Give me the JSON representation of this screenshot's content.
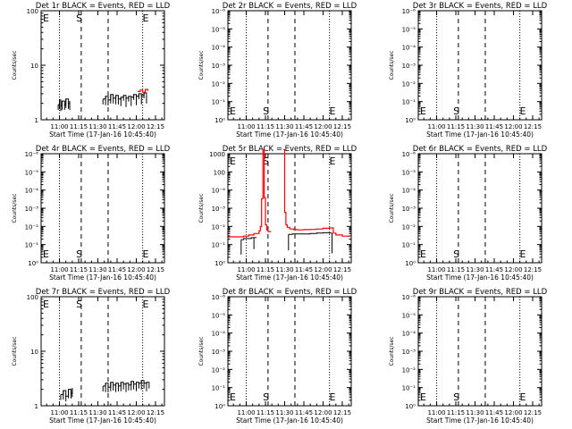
{
  "chart_data": [
    {
      "type": "line",
      "title": "Det 1r BLACK = Events, RED = LLD",
      "xlabel": "Start Time (17-Jan-16 10:45:40)",
      "ylabel": "Counts/sec",
      "y_scale": "log",
      "y_ticks": [
        "1",
        "10",
        "100"
      ],
      "x_ticks": [
        "11:00",
        "11:15",
        "11:30",
        "11:45",
        "12:00",
        "12:15"
      ],
      "markers": [
        {
          "label": "E",
          "time": "10:48"
        },
        {
          "label": "S",
          "time": "11:13"
        },
        {
          "label": "E",
          "time": "12:07"
        }
      ],
      "series": [
        {
          "color": "#000000",
          "x": [
            "10:59",
            "11:00",
            "11:01",
            "11:02",
            "11:04",
            "11:05",
            "11:07",
            "11:08"
          ],
          "y": [
            1.9,
            2.3,
            1.8,
            2.2,
            1.9,
            2.4,
            2.0,
            2.2
          ]
        },
        {
          "color": "#000000",
          "x": [
            "11:34",
            "11:36",
            "11:38",
            "11:40",
            "11:42",
            "11:44",
            "11:46",
            "11:48",
            "11:50",
            "11:52",
            "11:54",
            "11:56",
            "11:58",
            "12:00",
            "12:02",
            "12:04",
            "12:06",
            "12:08"
          ],
          "y": [
            2.4,
            2.7,
            2.3,
            2.9,
            2.5,
            2.8,
            2.4,
            2.6,
            2.8,
            2.5,
            2.7,
            2.6,
            2.9,
            2.7,
            3.0,
            2.8,
            3.1,
            2.9
          ]
        },
        {
          "color": "#ff0000",
          "x": [
            "12:01",
            "12:03",
            "12:05",
            "12:07",
            "12:09"
          ],
          "y": [
            3.3,
            3.5,
            3.2,
            3.6,
            3.4
          ]
        }
      ]
    },
    {
      "type": "line",
      "title": "Det 2r BLACK = Events, RED = LLD",
      "xlabel": "Start Time (17-Jan-16 10:45:40)",
      "ylabel": "Counts/sec",
      "y_scale": "log",
      "y_ticks": [
        "10⁰",
        "10⁻¹",
        "10⁻²",
        "10⁻³",
        "10⁻⁴",
        "10⁻⁵",
        "10⁻⁶"
      ],
      "x_ticks": [
        "11:00",
        "11:15",
        "11:30",
        "11:45",
        "12:00",
        "12:15"
      ],
      "markers": [
        {
          "label": "E",
          "time": "10:48"
        },
        {
          "label": "S",
          "time": "11:13"
        },
        {
          "label": "E",
          "time": "12:07"
        }
      ],
      "series": []
    },
    {
      "type": "line",
      "title": "Det 3r BLACK = Events, RED = LLD",
      "xlabel": "Start Time (17-Jan-16 10:45:40)",
      "ylabel": "Counts/sec",
      "y_scale": "log",
      "y_ticks": [
        "10⁰",
        "10⁻¹",
        "10⁻²",
        "10⁻³",
        "10⁻⁴",
        "10⁻⁵",
        "10⁻⁶"
      ],
      "x_ticks": [
        "11:00",
        "11:15",
        "11:30",
        "11:45",
        "12:00",
        "12:15"
      ],
      "markers": [
        {
          "label": "E",
          "time": "10:48"
        },
        {
          "label": "S",
          "time": "11:13"
        },
        {
          "label": "E",
          "time": "12:07"
        }
      ],
      "series": []
    },
    {
      "type": "line",
      "title": "Det 4r BLACK = Events, RED = LLD",
      "xlabel": "Start Time (17-Jan-16 10:45:40)",
      "ylabel": "Counts/sec",
      "y_scale": "log",
      "y_ticks": [
        "10⁰",
        "10⁻¹",
        "10⁻²",
        "10⁻³",
        "10⁻⁴",
        "10⁻⁵",
        "10⁻⁶"
      ],
      "x_ticks": [
        "11:00",
        "11:15",
        "11:30",
        "11:45",
        "12:00",
        "12:15"
      ],
      "markers": [
        {
          "label": "E",
          "time": "10:48"
        },
        {
          "label": "S",
          "time": "11:13"
        },
        {
          "label": "E",
          "time": "12:07"
        }
      ],
      "series": []
    },
    {
      "type": "line",
      "title": "Det 5r BLACK = Events, RED = LLD",
      "xlabel": "Start Time (17-Jan-16 10:45:40)",
      "ylabel": "Counts/sec",
      "y_scale": "log",
      "y_ticks": [
        "10⁰",
        "10⁻¹",
        "10⁻²",
        "10⁻³",
        "10⁻⁴",
        "100",
        "1000"
      ],
      "x_ticks": [
        "11:00",
        "11:15",
        "11:30",
        "11:45",
        "12:00",
        "12:15"
      ],
      "markers": [
        {
          "label": "E",
          "time": "10:48"
        },
        {
          "label": "S",
          "time": "11:13"
        },
        {
          "label": "E",
          "time": "12:07"
        }
      ],
      "series": [
        {
          "color": "#ff0000",
          "x": [
            "10:46",
            "10:50",
            "10:54",
            "10:58",
            "11:02",
            "11:06",
            "11:10",
            "11:11",
            "11:12",
            "11:13",
            "11:14",
            "11:15",
            "11:16",
            "11:17",
            "11:18",
            "11:19"
          ],
          "y": [
            0.0008,
            0.0008,
            0.0008,
            0.0009,
            0.0011,
            0.0014,
            0.0022,
            0.0045,
            0.5,
            2000,
            0.6,
            0.006,
            0.0025,
            0.002,
            0.0019,
            0.0018
          ]
        },
        {
          "color": "#ff0000",
          "x": [
            "11:29",
            "11:30",
            "11:31",
            "11:32",
            "11:34",
            "11:37",
            "11:40",
            "11:45",
            "11:50",
            "11:55",
            "12:00",
            "12:05",
            "12:08",
            "12:10",
            "12:15",
            "12:20"
          ],
          "y": [
            2000,
            0.05,
            0.006,
            0.004,
            0.003,
            0.0027,
            0.0026,
            0.0027,
            0.0028,
            0.003,
            0.0034,
            0.0036,
            0.0015,
            0.0011,
            0.0009,
            0.0008
          ]
        },
        {
          "color": "#000000",
          "x": [
            "10:56",
            "10:58",
            "11:00",
            "11:02",
            "11:04",
            "11:06",
            "11:08"
          ],
          "y": [
            0.0005,
            0.0006,
            0.0006,
            0.0006,
            0.0007,
            0.0007,
            0.0007
          ]
        },
        {
          "color": "#000000",
          "x": [
            "11:33",
            "11:36",
            "11:40",
            "11:45",
            "11:50",
            "11:55",
            "12:00",
            "12:03",
            "12:05",
            "12:07"
          ],
          "y": [
            0.0012,
            0.0013,
            0.0013,
            0.0013,
            0.0014,
            0.0015,
            0.0016,
            0.0016,
            0.0015,
            0.0015
          ]
        }
      ],
      "drops": [
        {
          "x": "10:56",
          "y_from": 0.0005,
          "y_to": 4e-05
        },
        {
          "x": "11:06",
          "y_from": 0.0007,
          "y_to": 0.0001
        },
        {
          "x": "11:33",
          "y_from": 0.0012,
          "y_to": 8e-05
        },
        {
          "x": "12:07",
          "y_from": 0.0015,
          "y_to": 5e-05
        }
      ]
    },
    {
      "type": "line",
      "title": "Det 6r BLACK = Events, RED = LLD",
      "xlabel": "Start Time (17-Jan-16 10:45:40)",
      "ylabel": "Counts/sec",
      "y_scale": "log",
      "y_ticks": [
        "10⁰",
        "10⁻¹",
        "10⁻²",
        "10⁻³",
        "10⁻⁴",
        "10⁻⁵",
        "10⁻⁶"
      ],
      "x_ticks": [
        "11:00",
        "11:15",
        "11:30",
        "11:45",
        "12:00",
        "12:15"
      ],
      "markers": [
        {
          "label": "E",
          "time": "10:48"
        },
        {
          "label": "S",
          "time": "11:13"
        },
        {
          "label": "E",
          "time": "12:07"
        }
      ],
      "series": []
    },
    {
      "type": "line",
      "title": "Det 7r BLACK = Events, RED = LLD",
      "xlabel": "Start Time (17-Jan-16 10:45:40)",
      "ylabel": "Counts/sec",
      "y_scale": "log",
      "y_ticks": [
        "1",
        "10",
        "100"
      ],
      "x_ticks": [
        "11:00",
        "11:15",
        "11:30",
        "11:45",
        "12:00",
        "12:15"
      ],
      "markers": [
        {
          "label": "E",
          "time": "10:48"
        },
        {
          "label": "S",
          "time": "11:13"
        },
        {
          "label": "E",
          "time": "12:07"
        }
      ],
      "series": [
        {
          "color": "#000000",
          "x": [
            "11:01",
            "11:03",
            "11:05",
            "11:07",
            "11:09",
            "11:10"
          ],
          "y": [
            1.6,
            1.9,
            1.5,
            2.0,
            1.7,
            2.1
          ]
        },
        {
          "color": "#000000",
          "x": [
            "11:34",
            "11:36",
            "11:38",
            "11:40",
            "11:42",
            "11:44",
            "11:46",
            "11:48",
            "11:50",
            "11:52",
            "11:54",
            "11:56",
            "11:58",
            "12:00",
            "12:02",
            "12:04",
            "12:06",
            "12:08",
            "12:10"
          ],
          "y": [
            2.3,
            2.6,
            2.2,
            2.7,
            2.4,
            2.6,
            2.3,
            2.7,
            2.5,
            2.6,
            2.4,
            2.8,
            2.5,
            2.7,
            2.6,
            2.9,
            2.6,
            2.7,
            2.6
          ]
        }
      ]
    },
    {
      "type": "line",
      "title": "Det 8r BLACK = Events, RED = LLD",
      "xlabel": "Start Time (17-Jan-16 10:45:40)",
      "ylabel": "Counts/sec",
      "y_scale": "log",
      "y_ticks": [
        "10⁰",
        "10⁻¹",
        "10⁻²",
        "10⁻³",
        "10⁻⁴",
        "10⁻⁵",
        "10⁻⁶"
      ],
      "x_ticks": [
        "11:00",
        "11:15",
        "11:30",
        "11:45",
        "12:00",
        "12:15"
      ],
      "markers": [
        {
          "label": "E",
          "time": "10:48"
        },
        {
          "label": "S",
          "time": "11:13"
        },
        {
          "label": "E",
          "time": "12:07"
        }
      ],
      "series": []
    },
    {
      "type": "line",
      "title": "Det 9r BLACK = Events, RED = LLD",
      "xlabel": "Start Time (17-Jan-16 10:45:40)",
      "ylabel": "Counts/sec",
      "y_scale": "log",
      "y_ticks": [
        "10⁰",
        "10⁻¹",
        "10⁻²",
        "10⁻³",
        "10⁻⁴",
        "10⁻⁵",
        "10⁻⁶"
      ],
      "x_ticks": [
        "11:00",
        "11:15",
        "11:30",
        "11:45",
        "12:00",
        "12:15"
      ],
      "markers": [
        {
          "label": "E",
          "time": "10:48"
        },
        {
          "label": "S",
          "time": "11:13"
        },
        {
          "label": "E",
          "time": "12:07"
        }
      ],
      "series": []
    }
  ]
}
